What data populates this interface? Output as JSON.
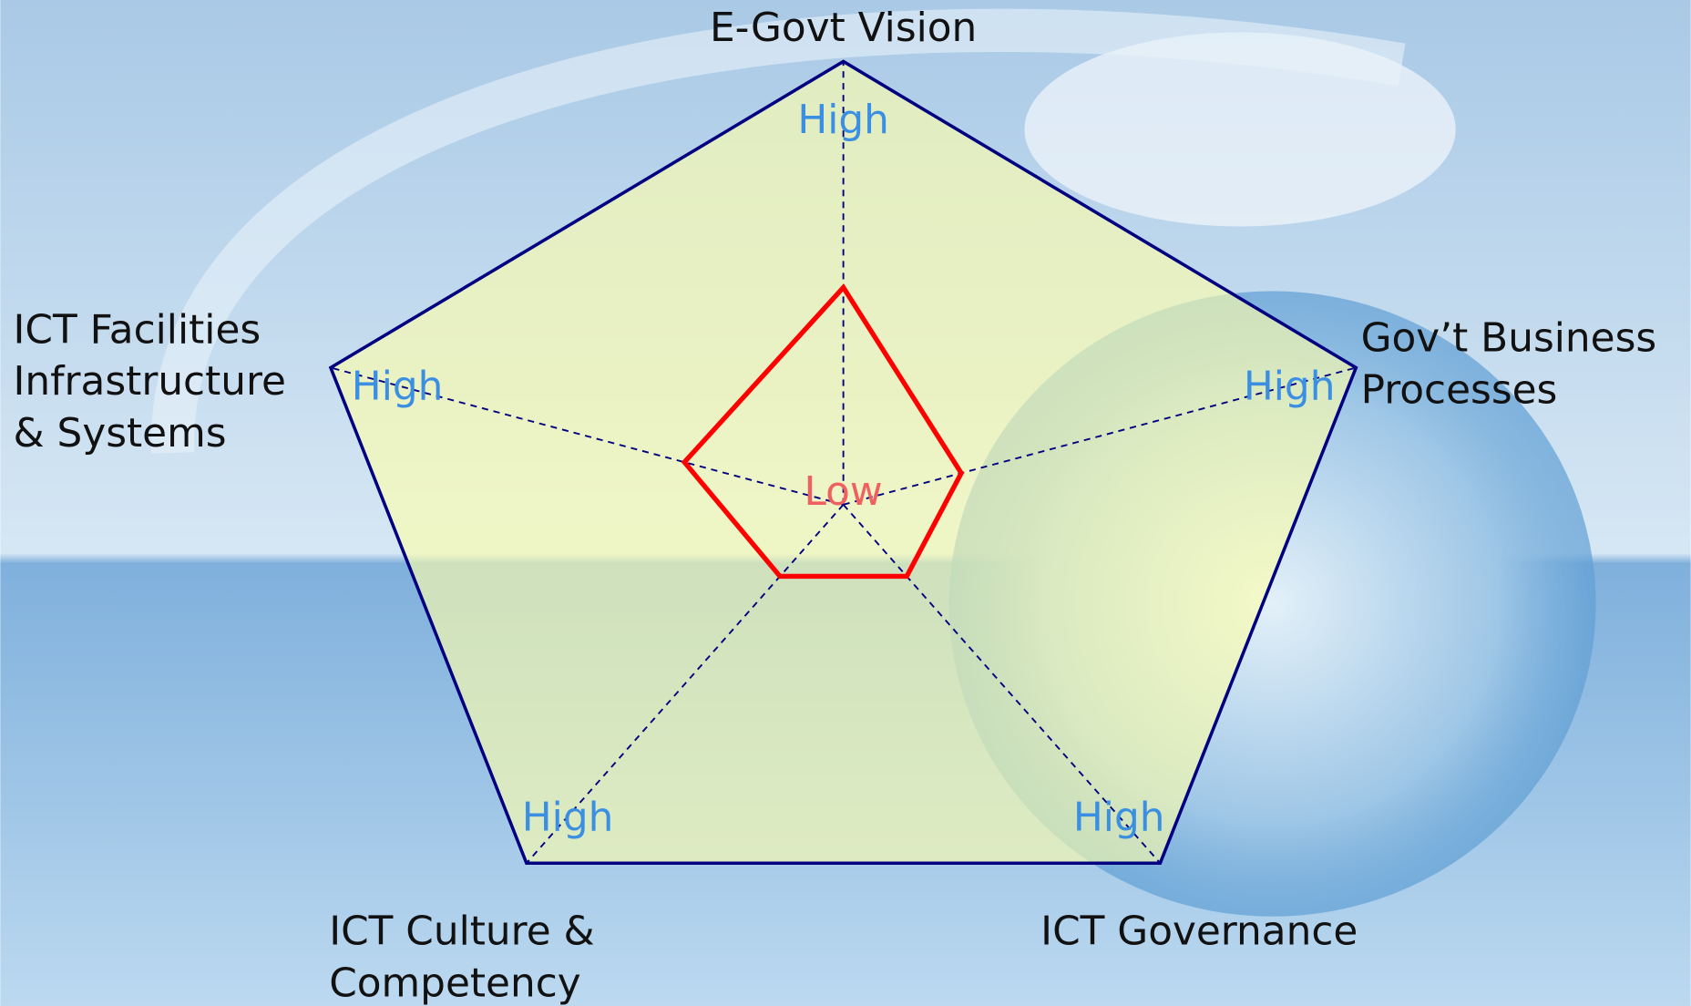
{
  "chart_data": {
    "type": "radar",
    "categories": [
      "E-Govt Vision",
      "Gov’t Business\nProcesses",
      "ICT Governance",
      "ICT Culture &\nCompetency",
      "ICT Facilities\nInfrastructure\n& Systems"
    ],
    "values": [
      0.49,
      0.23,
      0.2,
      0.2,
      0.31
    ],
    "color": "#ff0000",
    "rlim": [
      0,
      1
    ],
    "rticks": [
      {
        "value": 0,
        "label": "Low"
      },
      {
        "value": 1,
        "label": "High"
      }
    ],
    "grid": true
  }
}
